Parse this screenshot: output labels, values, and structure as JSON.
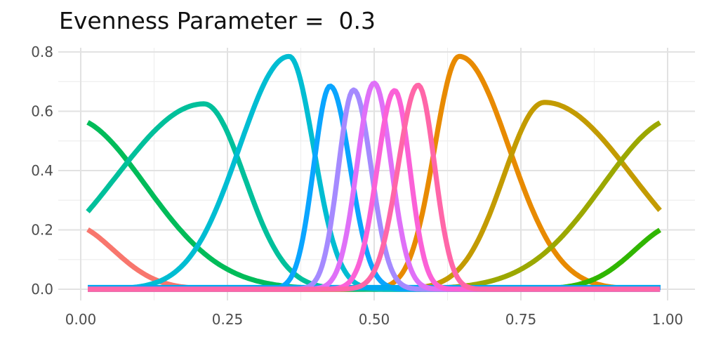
{
  "title": "Evenness Parameter =  0.3",
  "chart_data": {
    "type": "line",
    "title": "Evenness Parameter =  0.3",
    "xlabel": "",
    "ylabel": "",
    "xlim": [
      0,
      1
    ],
    "ylim": [
      0,
      0.8
    ],
    "domain": [
      0.012,
      0.988
    ],
    "grid": true,
    "legend": false,
    "background": "#ffffff",
    "grid_major_color": "#e2e2e2",
    "grid_minor_color": "#eeeeee",
    "tick_label_color": "#4d4d4d",
    "x_ticks": {
      "values": [
        0,
        0.25,
        0.5,
        0.75,
        1.0
      ],
      "labels": [
        "0.00",
        "0.25",
        "0.50",
        "0.75",
        "1.00"
      ]
    },
    "y_ticks": {
      "values": [
        0,
        0.2,
        0.4,
        0.6,
        0.8
      ],
      "labels": [
        "0.0",
        "0.2",
        "0.4",
        "0.6",
        "0.8"
      ]
    },
    "x_minor": [
      0.125,
      0.375,
      0.625,
      0.875
    ],
    "y_minor": [
      0.1,
      0.3,
      0.5,
      0.7
    ],
    "series": [
      {
        "name": "salmon",
        "color": "#F8766D",
        "shape": "gaussian",
        "center": -0.02,
        "height": 0.22,
        "sigma_left": 0.075,
        "sigma_right": 0.075
      },
      {
        "name": "orange",
        "color": "#E88A00",
        "shape": "gaussian",
        "center": 0.645,
        "height": 0.785,
        "sigma_left": 0.042,
        "sigma_right": 0.085
      },
      {
        "name": "dark-yellow",
        "color": "#C39B00",
        "shape": "gaussian",
        "center": 0.79,
        "height": 0.63,
        "sigma_left": 0.069,
        "sigma_right": 0.15
      },
      {
        "name": "olive",
        "color": "#9BA800",
        "shape": "gaussian",
        "center": 1.02,
        "height": 0.58,
        "sigma_left": 0.13,
        "sigma_right": 0.13
      },
      {
        "name": "bright-green",
        "color": "#30B600",
        "shape": "gaussian",
        "center": 1.02,
        "height": 0.22,
        "sigma_left": 0.075,
        "sigma_right": 0.075
      },
      {
        "name": "sea-green",
        "color": "#00BC59",
        "shape": "gaussian",
        "center": -0.02,
        "height": 0.58,
        "sigma_left": 0.13,
        "sigma_right": 0.13
      },
      {
        "name": "teal",
        "color": "#00C09B",
        "shape": "gaussian",
        "center": 0.21,
        "height": 0.625,
        "sigma_left": 0.15,
        "sigma_right": 0.069
      },
      {
        "name": "cyan",
        "color": "#00BDD2",
        "shape": "gaussian",
        "center": 0.355,
        "height": 0.785,
        "sigma_left": 0.085,
        "sigma_right": 0.042
      },
      {
        "name": "azure",
        "color": "#0AA5FF",
        "shape": "gaussian",
        "center": 0.425,
        "height": 0.685,
        "sigma_left": 0.028,
        "sigma_right": 0.034
      },
      {
        "name": "flat-blue",
        "color": "#00A7F0",
        "shape": "flat",
        "value": 0.006
      },
      {
        "name": "periwinkle",
        "color": "#A58AFF",
        "shape": "gaussian",
        "center": 0.465,
        "height": 0.672,
        "sigma_left": 0.026,
        "sigma_right": 0.03
      },
      {
        "name": "orchid",
        "color": "#DF70F8",
        "shape": "gaussian",
        "center": 0.5,
        "height": 0.695,
        "sigma_left": 0.029,
        "sigma_right": 0.029
      },
      {
        "name": "magenta",
        "color": "#FB61D7",
        "shape": "gaussian",
        "center": 0.535,
        "height": 0.67,
        "sigma_left": 0.03,
        "sigma_right": 0.026
      },
      {
        "name": "hot-pink",
        "color": "#FF66A8",
        "shape": "gaussian",
        "center": 0.575,
        "height": 0.688,
        "sigma_left": 0.034,
        "sigma_right": 0.028
      }
    ]
  }
}
